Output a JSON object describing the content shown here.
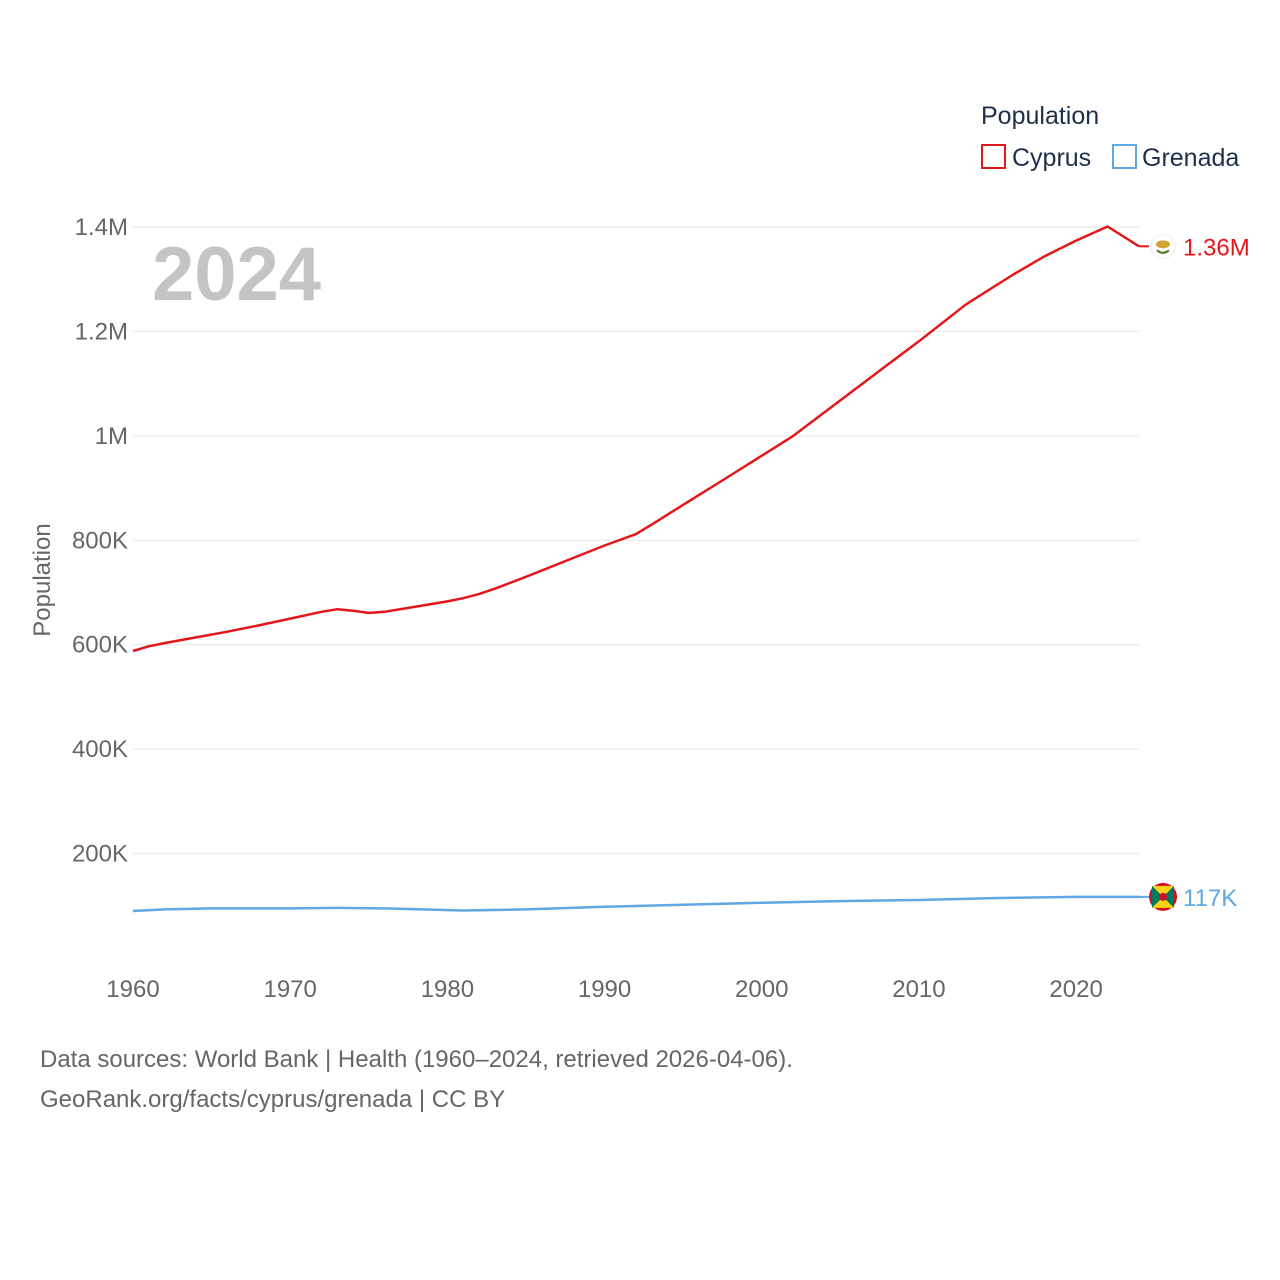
{
  "chart_data": {
    "type": "line",
    "title": "Population",
    "ylabel": "Population",
    "xlabel": "",
    "year_label": "2024",
    "xlim": [
      1960,
      2024
    ],
    "ylim": [
      0,
      1400000
    ],
    "x_ticks": [
      1960,
      1970,
      1980,
      1990,
      2000,
      2010,
      2020
    ],
    "y_ticks": [
      {
        "value": 200000,
        "label": "200K"
      },
      {
        "value": 400000,
        "label": "400K"
      },
      {
        "value": 600000,
        "label": "600K"
      },
      {
        "value": 800000,
        "label": "800K"
      },
      {
        "value": 1000000,
        "label": "1M"
      },
      {
        "value": 1200000,
        "label": "1.2M"
      },
      {
        "value": 1400000,
        "label": "1.4M"
      }
    ],
    "legend_position": "top-right",
    "series": [
      {
        "name": "Cyprus",
        "color": "#e3161a",
        "end_label": "1.36M",
        "flag_icon": "cyprus-flag-icon",
        "x": [
          1960,
          1961,
          1962,
          1964,
          1966,
          1968,
          1970,
          1972,
          1973,
          1974,
          1975,
          1976,
          1978,
          1980,
          1981,
          1982,
          1983,
          1985,
          1988,
          1990,
          1992,
          1993,
          1995,
          1998,
          2000,
          2002,
          2005,
          2008,
          2010,
          2013,
          2016,
          2018,
          2020,
          2022,
          2024
        ],
        "y": [
          588000,
          597000,
          603000,
          614000,
          625000,
          637000,
          650000,
          663000,
          668000,
          665000,
          661000,
          663000,
          673000,
          683000,
          689000,
          697000,
          707000,
          730000,
          766000,
          790000,
          812000,
          830000,
          868000,
          924000,
          962000,
          1000000,
          1068000,
          1136000,
          1181000,
          1252000,
          1309000,
          1344000,
          1374000,
          1401000,
          1363000
        ]
      },
      {
        "name": "Grenada",
        "color": "#5fa8e4",
        "end_label": "117K",
        "flag_icon": "grenada-flag-icon",
        "x": [
          1960,
          1962,
          1965,
          1970,
          1973,
          1976,
          1981,
          1985,
          1990,
          1995,
          2000,
          2005,
          2010,
          2015,
          2020,
          2024
        ],
        "y": [
          90000,
          93000,
          95000,
          95000,
          96000,
          95000,
          91000,
          93000,
          98000,
          102000,
          106000,
          109000,
          111000,
          115000,
          117000,
          117000
        ]
      }
    ]
  },
  "legend": {
    "title": "Population",
    "items": [
      "Cyprus",
      "Grenada"
    ]
  },
  "source": {
    "line1": "Data sources: World Bank | Health (1960–2024, retrieved 2026-04-06).",
    "line2": "GeoRank.org/facts/cyprus/grenada | CC BY"
  }
}
